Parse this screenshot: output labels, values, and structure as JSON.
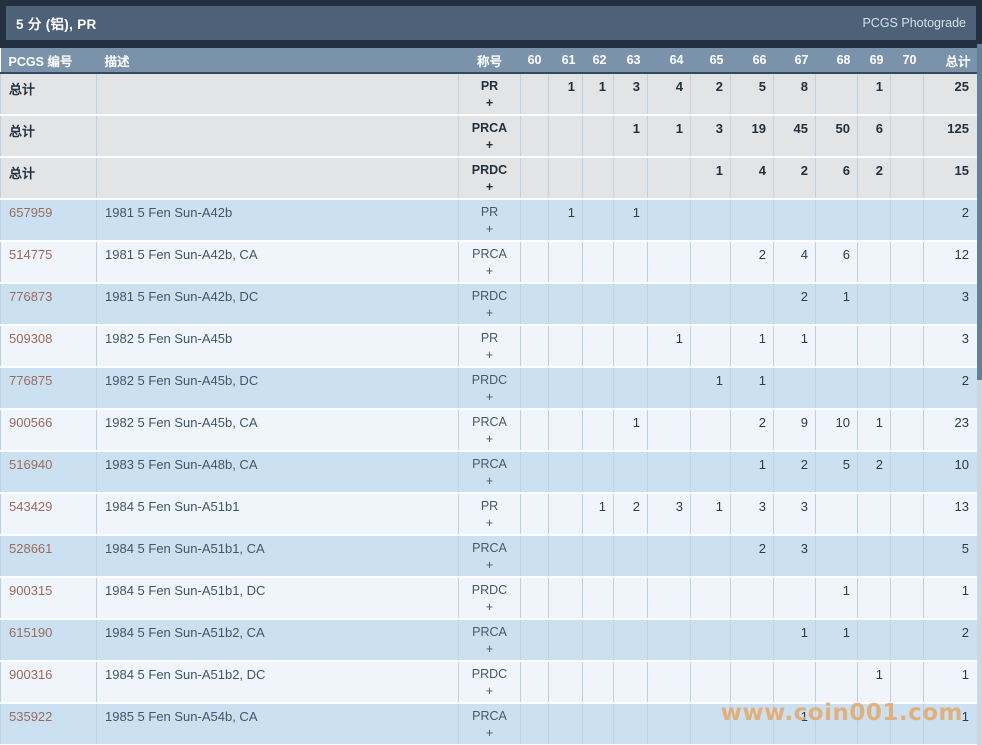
{
  "title_bar": {
    "title": "5 分 (铝), PR",
    "photograde_link": "PCGS Photograde"
  },
  "table": {
    "headers": {
      "pcgs_number": "PCGS 编号",
      "description": "描述",
      "designation": "称号",
      "grades": [
        "60",
        "61",
        "62",
        "63",
        "64",
        "65",
        "66",
        "67",
        "68",
        "69",
        "70"
      ],
      "total": "总计"
    },
    "totals_label": "总计",
    "plus_suffix": "+",
    "summary_rows": [
      {
        "designation": "PR",
        "values": [
          "",
          "1",
          "1",
          "3",
          "4",
          "2",
          "5",
          "8",
          "",
          "1",
          ""
        ],
        "total": "25"
      },
      {
        "designation": "PRCA",
        "values": [
          "",
          "",
          "",
          "1",
          "1",
          "3",
          "19",
          "45",
          "50",
          "6",
          ""
        ],
        "total": "125"
      },
      {
        "designation": "PRDC",
        "values": [
          "",
          "",
          "",
          "",
          "",
          "1",
          "4",
          "2",
          "6",
          "2",
          ""
        ],
        "total": "15"
      }
    ],
    "coin_rows": [
      {
        "pcgs_number": "657959",
        "description": "1981 5 Fen Sun-A42b",
        "designation": "PR",
        "values": [
          "",
          "1",
          "",
          "1",
          "",
          "",
          "",
          "",
          "",
          "",
          ""
        ],
        "total": "2"
      },
      {
        "pcgs_number": "514775",
        "description": "1981 5 Fen Sun-A42b, CA",
        "designation": "PRCA",
        "values": [
          "",
          "",
          "",
          "",
          "",
          "",
          "2",
          "4",
          "6",
          "",
          ""
        ],
        "total": "12"
      },
      {
        "pcgs_number": "776873",
        "description": "1981 5 Fen Sun-A42b, DC",
        "designation": "PRDC",
        "values": [
          "",
          "",
          "",
          "",
          "",
          "",
          "",
          "2",
          "1",
          "",
          ""
        ],
        "total": "3"
      },
      {
        "pcgs_number": "509308",
        "description": "1982 5 Fen Sun-A45b",
        "designation": "PR",
        "values": [
          "",
          "",
          "",
          "",
          "1",
          "",
          "1",
          "1",
          "",
          "",
          ""
        ],
        "total": "3"
      },
      {
        "pcgs_number": "776875",
        "description": "1982 5 Fen Sun-A45b, DC",
        "designation": "PRDC",
        "values": [
          "",
          "",
          "",
          "",
          "",
          "1",
          "1",
          "",
          "",
          "",
          ""
        ],
        "total": "2"
      },
      {
        "pcgs_number": "900566",
        "description": "1982 5 Fen Sun-A45b, CA",
        "designation": "PRCA",
        "values": [
          "",
          "",
          "",
          "1",
          "",
          "",
          "2",
          "9",
          "10",
          "1",
          ""
        ],
        "total": "23"
      },
      {
        "pcgs_number": "516940",
        "description": "1983 5 Fen Sun-A48b, CA",
        "designation": "PRCA",
        "values": [
          "",
          "",
          "",
          "",
          "",
          "",
          "1",
          "2",
          "5",
          "2",
          ""
        ],
        "total": "10"
      },
      {
        "pcgs_number": "543429",
        "description": "1984 5 Fen Sun-A51b1",
        "designation": "PR",
        "values": [
          "",
          "",
          "1",
          "2",
          "3",
          "1",
          "3",
          "3",
          "",
          "",
          ""
        ],
        "total": "13"
      },
      {
        "pcgs_number": "528661",
        "description": "1984 5 Fen Sun-A51b1, CA",
        "designation": "PRCA",
        "values": [
          "",
          "",
          "",
          "",
          "",
          "",
          "2",
          "3",
          "",
          "",
          ""
        ],
        "total": "5"
      },
      {
        "pcgs_number": "900315",
        "description": "1984 5 Fen Sun-A51b1, DC",
        "designation": "PRDC",
        "values": [
          "",
          "",
          "",
          "",
          "",
          "",
          "",
          "",
          "1",
          "",
          ""
        ],
        "total": "1"
      },
      {
        "pcgs_number": "615190",
        "description": "1984 5 Fen Sun-A51b2, CA",
        "designation": "PRCA",
        "values": [
          "",
          "",
          "",
          "",
          "",
          "",
          "",
          "1",
          "1",
          "",
          ""
        ],
        "total": "2"
      },
      {
        "pcgs_number": "900316",
        "description": "1984 5 Fen Sun-A51b2, DC",
        "designation": "PRDC",
        "values": [
          "",
          "",
          "",
          "",
          "",
          "",
          "",
          "",
          "",
          "1",
          ""
        ],
        "total": "1"
      },
      {
        "pcgs_number": "535922",
        "description": "1985 5 Fen Sun-A54b, CA",
        "designation": "PRCA",
        "values": [
          "",
          "",
          "",
          "",
          "",
          "",
          "",
          "1",
          "",
          "",
          ""
        ],
        "total": "1"
      }
    ]
  },
  "watermark": "www.coin001.com",
  "colors": {
    "chrome_dark": "#22303f",
    "title_bar": "#4d6278",
    "header": "#7a93ab",
    "row_blue": "#cbe1f2",
    "row_light": "#eff5fa",
    "summary_row": "#e3e4e6",
    "pcgs_number_text": "#9c6b5b",
    "watermark_text": "#e7a868"
  }
}
